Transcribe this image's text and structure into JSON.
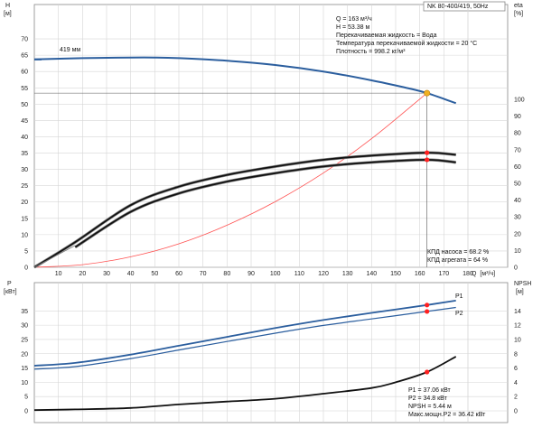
{
  "chart_data": [
    {
      "type": "line",
      "model": "NK 80-400/419, 50Hz",
      "left_axis": {
        "label": "H",
        "unit": "[м]",
        "ylim": [
          0,
          75
        ],
        "ticks": [
          0,
          5,
          10,
          15,
          20,
          25,
          30,
          35,
          40,
          45,
          50,
          55,
          60,
          65,
          70
        ]
      },
      "right_axis": {
        "label": "eta",
        "unit": "[%]",
        "ylim": [
          0,
          100
        ],
        "ticks": [
          0,
          10,
          20,
          30,
          40,
          50,
          60,
          70,
          80,
          90,
          100
        ]
      },
      "x_axis": {
        "label": "Q",
        "unit": "[м³/ч]",
        "xlim": [
          0,
          180
        ],
        "ticks": [
          10,
          20,
          30,
          40,
          50,
          60,
          70,
          80,
          90,
          100,
          110,
          120,
          130,
          140,
          150,
          160,
          170,
          180
        ]
      },
      "head_curve_label": "419 мм",
      "info_lines": [
        "Q = 163 м³/ч",
        "H = 53.38 м",
        "Перекачиваемая жидкость = Вода",
        "Температура перекачиваемой жидкости = 20 °C",
        "Плотность = 998.2 кг/м³"
      ],
      "efficiency_lines": [
        "КПД насоса = 68.2 %",
        "КПД агрегата = 64 %"
      ],
      "duty_point": {
        "Q": 163,
        "H": 53.38
      },
      "series": [
        {
          "id": "head",
          "axis": "left",
          "color": "#2b5e9e",
          "x": [
            0,
            20,
            40,
            50,
            60,
            80,
            100,
            120,
            140,
            155,
            163,
            175
          ],
          "y": [
            63.7,
            64.1,
            64.3,
            64.3,
            64.1,
            63.3,
            62.0,
            60.0,
            57.3,
            54.9,
            53.38,
            50.3
          ]
        },
        {
          "id": "system",
          "axis": "left",
          "color": "#ff5050",
          "x": [
            0,
            20,
            40,
            60,
            80,
            100,
            120,
            140,
            163
          ],
          "y": [
            0,
            0.8,
            3.2,
            7.2,
            12.9,
            20.1,
            28.9,
            39.4,
            53.38
          ]
        },
        {
          "id": "eta-pump",
          "axis": "right",
          "color": "#111111",
          "x": [
            0,
            17,
            40,
            60,
            80,
            100,
            120,
            140,
            163,
            175
          ],
          "y": [
            0,
            15,
            37,
            48,
            55,
            60,
            64,
            66.5,
            68.2,
            67
          ]
        },
        {
          "id": "eta-unit",
          "axis": "right",
          "color": "#111111",
          "x": [
            17,
            40,
            60,
            80,
            100,
            120,
            140,
            163,
            175
          ],
          "y": [
            12,
            33,
            44,
            51,
            56,
            60,
            62.5,
            64,
            62.5
          ]
        }
      ],
      "markers": [
        {
          "axis": "left",
          "x": 163,
          "y": 53.38,
          "color": "#f0b020"
        },
        {
          "axis": "right",
          "x": 163,
          "y": 68.2,
          "color": "#ff2020"
        },
        {
          "axis": "right",
          "x": 163,
          "y": 64,
          "color": "#ff2020"
        }
      ]
    },
    {
      "type": "line",
      "left_axis": {
        "label": "P",
        "unit": "[кВт]",
        "ylim": [
          0,
          40
        ],
        "ticks": [
          0,
          5,
          10,
          15,
          20,
          25,
          30,
          35
        ]
      },
      "right_axis": {
        "label": "NPSH",
        "unit": "[м]",
        "ylim": [
          0,
          16
        ],
        "ticks": [
          0,
          2,
          4,
          6,
          8,
          10,
          12,
          14
        ]
      },
      "x_axis": {
        "xlim": [
          0,
          180
        ]
      },
      "info_lines": [
        "P1 = 37.06 кВт",
        "P2 = 34.8 кВт",
        "NPSH = 5.44 м",
        "Макс.мощн.P2 = 36.42 кВт"
      ],
      "series": [
        {
          "id": "P1",
          "label": "P1",
          "axis": "left",
          "color": "#2b5e9e",
          "x": [
            0,
            17,
            40,
            60,
            80,
            100,
            120,
            140,
            163,
            175
          ],
          "y": [
            15.8,
            16.8,
            19.7,
            22.8,
            25.9,
            29.0,
            31.8,
            34.3,
            37.06,
            38.6
          ]
        },
        {
          "id": "P2",
          "label": "P2",
          "axis": "left",
          "color": "#2b5e9e",
          "x": [
            0,
            17,
            40,
            60,
            80,
            100,
            120,
            140,
            163,
            175
          ],
          "y": [
            14.6,
            15.5,
            18.3,
            21.3,
            24.3,
            27.2,
            29.9,
            32.2,
            34.8,
            36.2
          ]
        },
        {
          "id": "NPSH",
          "label": "NPSH",
          "axis": "right",
          "color": "#111111",
          "x": [
            0,
            17,
            40,
            60,
            80,
            100,
            120,
            140,
            150,
            163,
            175
          ],
          "y": [
            0.1,
            0.2,
            0.4,
            0.9,
            1.3,
            1.7,
            2.4,
            3.2,
            4.0,
            5.44,
            7.6
          ]
        }
      ],
      "markers": [
        {
          "axis": "left",
          "x": 163,
          "y": 37.06,
          "color": "#ff2020"
        },
        {
          "axis": "left",
          "x": 163,
          "y": 34.8,
          "color": "#ff2020"
        },
        {
          "axis": "right",
          "x": 163,
          "y": 5.44,
          "color": "#ff2020"
        }
      ]
    }
  ]
}
